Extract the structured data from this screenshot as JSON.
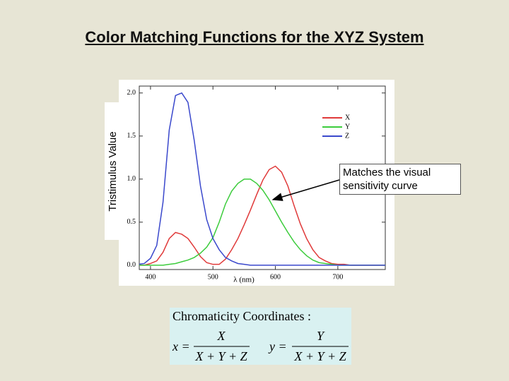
{
  "chart_data": {
    "type": "line",
    "title": "Color Matching Functions for the XYZ System",
    "y_label": "Tristimulus Value",
    "x_label": "λ (nm)",
    "annotation": "Matches the visual sensitivity curve",
    "x": [
      380,
      390,
      400,
      410,
      420,
      430,
      440,
      450,
      460,
      470,
      480,
      490,
      500,
      510,
      520,
      530,
      540,
      550,
      560,
      570,
      580,
      590,
      600,
      610,
      620,
      630,
      640,
      650,
      660,
      670,
      680,
      690,
      700,
      710,
      720,
      730,
      740,
      750,
      760,
      770,
      780
    ],
    "series": [
      {
        "name": "X",
        "color": "#e03a3a",
        "values": [
          0.0,
          0.0,
          0.02,
          0.05,
          0.15,
          0.31,
          0.38,
          0.36,
          0.31,
          0.21,
          0.1,
          0.03,
          0.01,
          0.01,
          0.07,
          0.18,
          0.31,
          0.47,
          0.64,
          0.82,
          0.99,
          1.11,
          1.15,
          1.08,
          0.92,
          0.69,
          0.48,
          0.31,
          0.18,
          0.09,
          0.05,
          0.02,
          0.01,
          0.01,
          0.0,
          0.0,
          0.0,
          0.0,
          0.0,
          0.0,
          0.0
        ]
      },
      {
        "name": "Y",
        "color": "#3ccc3c",
        "values": [
          0.0,
          0.0,
          0.0,
          0.0,
          0.0,
          0.01,
          0.02,
          0.04,
          0.06,
          0.09,
          0.14,
          0.21,
          0.32,
          0.5,
          0.71,
          0.86,
          0.95,
          1.0,
          1.0,
          0.95,
          0.87,
          0.76,
          0.63,
          0.5,
          0.38,
          0.27,
          0.18,
          0.11,
          0.06,
          0.03,
          0.02,
          0.01,
          0.0,
          0.0,
          0.0,
          0.0,
          0.0,
          0.0,
          0.0,
          0.0,
          0.0
        ]
      },
      {
        "name": "Z",
        "color": "#3a48cc",
        "values": [
          0.01,
          0.02,
          0.08,
          0.23,
          0.73,
          1.57,
          1.97,
          2.0,
          1.89,
          1.45,
          0.92,
          0.53,
          0.31,
          0.18,
          0.09,
          0.05,
          0.02,
          0.01,
          0.0,
          0.0,
          0.0,
          0.0,
          0.0,
          0.0,
          0.0,
          0.0,
          0.0,
          0.0,
          0.0,
          0.0,
          0.0,
          0.0,
          0.0,
          0.0,
          0.0,
          0.0,
          0.0,
          0.0,
          0.0,
          0.0,
          0.0
        ]
      }
    ],
    "xlim": [
      382,
      776
    ],
    "ylim": [
      -0.05,
      2.08
    ],
    "xticks": [
      400,
      500,
      600,
      700
    ],
    "yticks": [
      {
        "value": 0,
        "label": "0.0"
      },
      0.5,
      {
        "value": 1,
        "label": "1.0"
      },
      1.5,
      {
        "value": 2,
        "label": "2.0"
      }
    ],
    "legend": "upper right"
  },
  "formula": {
    "heading": "Chromaticity Coordinates :",
    "x_lhs": "x =",
    "x_numerator": "X",
    "x_denominator": "X + Y + Z",
    "y_lhs": "y =",
    "y_numerator": "Y",
    "y_denominator": "X + Y + Z"
  }
}
